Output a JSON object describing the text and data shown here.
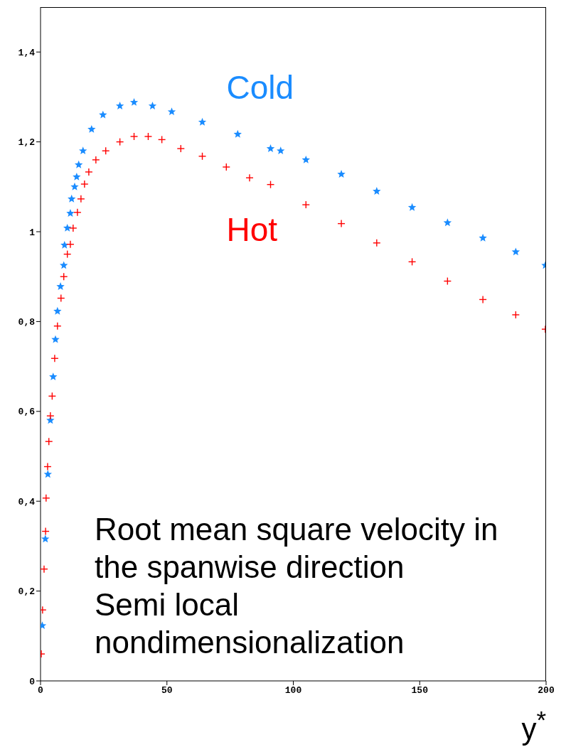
{
  "chart_data": {
    "type": "scatter",
    "xlabel": "y$^{*}$",
    "xlim": [
      0,
      200
    ],
    "xticks": [
      0,
      50,
      100,
      150,
      200
    ],
    "ylim": [
      0,
      1.5
    ],
    "yticks": [
      0,
      {
        "value": 0.2,
        "label": "0,2"
      },
      {
        "value": 0.4,
        "label": "0,4"
      },
      {
        "value": 0.6,
        "label": "0,6"
      },
      {
        "value": 0.8,
        "label": "0,8"
      },
      1,
      {
        "value": 1.2,
        "label": "1,2"
      },
      {
        "value": 1.4,
        "label": "1,4"
      }
    ],
    "grid": false,
    "legend": false,
    "annotations": [
      "Root mean square velocity in the spanwise direction",
      "Semi local nondimensionalization"
    ],
    "series": [
      {
        "name": "Cold",
        "color": "#1a8cff",
        "marker": "star",
        "x": [
          0.7,
          1.9,
          2.9,
          3.9,
          5,
          5.9,
          6.7,
          7.9,
          9.2,
          9.5,
          10.6,
          11.8,
          12.3,
          13.5,
          14.3,
          15.1,
          16.8,
          20.2,
          24.7,
          31.4,
          37,
          44.3,
          51.9,
          64,
          78,
          91,
          95,
          105,
          119,
          133,
          147,
          161,
          175,
          188,
          199.7
        ],
        "values": [
          0.123,
          0.316,
          0.46,
          0.58,
          0.677,
          0.76,
          0.823,
          0.878,
          0.925,
          0.97,
          1.008,
          1.041,
          1.073,
          1.1,
          1.122,
          1.149,
          1.18,
          1.228,
          1.26,
          1.28,
          1.288,
          1.28,
          1.267,
          1.244,
          1.217,
          1.185,
          1.18,
          1.16,
          1.128,
          1.09,
          1.054,
          1.02,
          0.986,
          0.955,
          0.925
        ]
      },
      {
        "name": "Hot",
        "color": "#ff0000",
        "marker": "cross",
        "x": [
          0.3,
          0.8,
          1.4,
          2,
          2.2,
          2.8,
          3.3,
          3.9,
          4.6,
          5.6,
          6.7,
          8.1,
          9.2,
          10.6,
          11.8,
          12.9,
          14.6,
          16,
          17.4,
          19.1,
          21.9,
          25.8,
          31.4,
          37,
          42.6,
          48,
          55.5,
          64,
          73.5,
          82.7,
          91,
          105,
          119,
          133,
          147,
          161,
          175,
          188,
          199.7
        ],
        "values": [
          0.06,
          0.158,
          0.249,
          0.333,
          0.407,
          0.477,
          0.533,
          0.59,
          0.634,
          0.718,
          0.79,
          0.852,
          0.9,
          0.95,
          0.972,
          1.008,
          1.043,
          1.073,
          1.106,
          1.133,
          1.16,
          1.18,
          1.2,
          1.212,
          1.212,
          1.205,
          1.185,
          1.168,
          1.144,
          1.12,
          1.105,
          1.06,
          1.018,
          0.975,
          0.933,
          0.89,
          0.849,
          0.815,
          0.783
        ]
      }
    ]
  }
}
